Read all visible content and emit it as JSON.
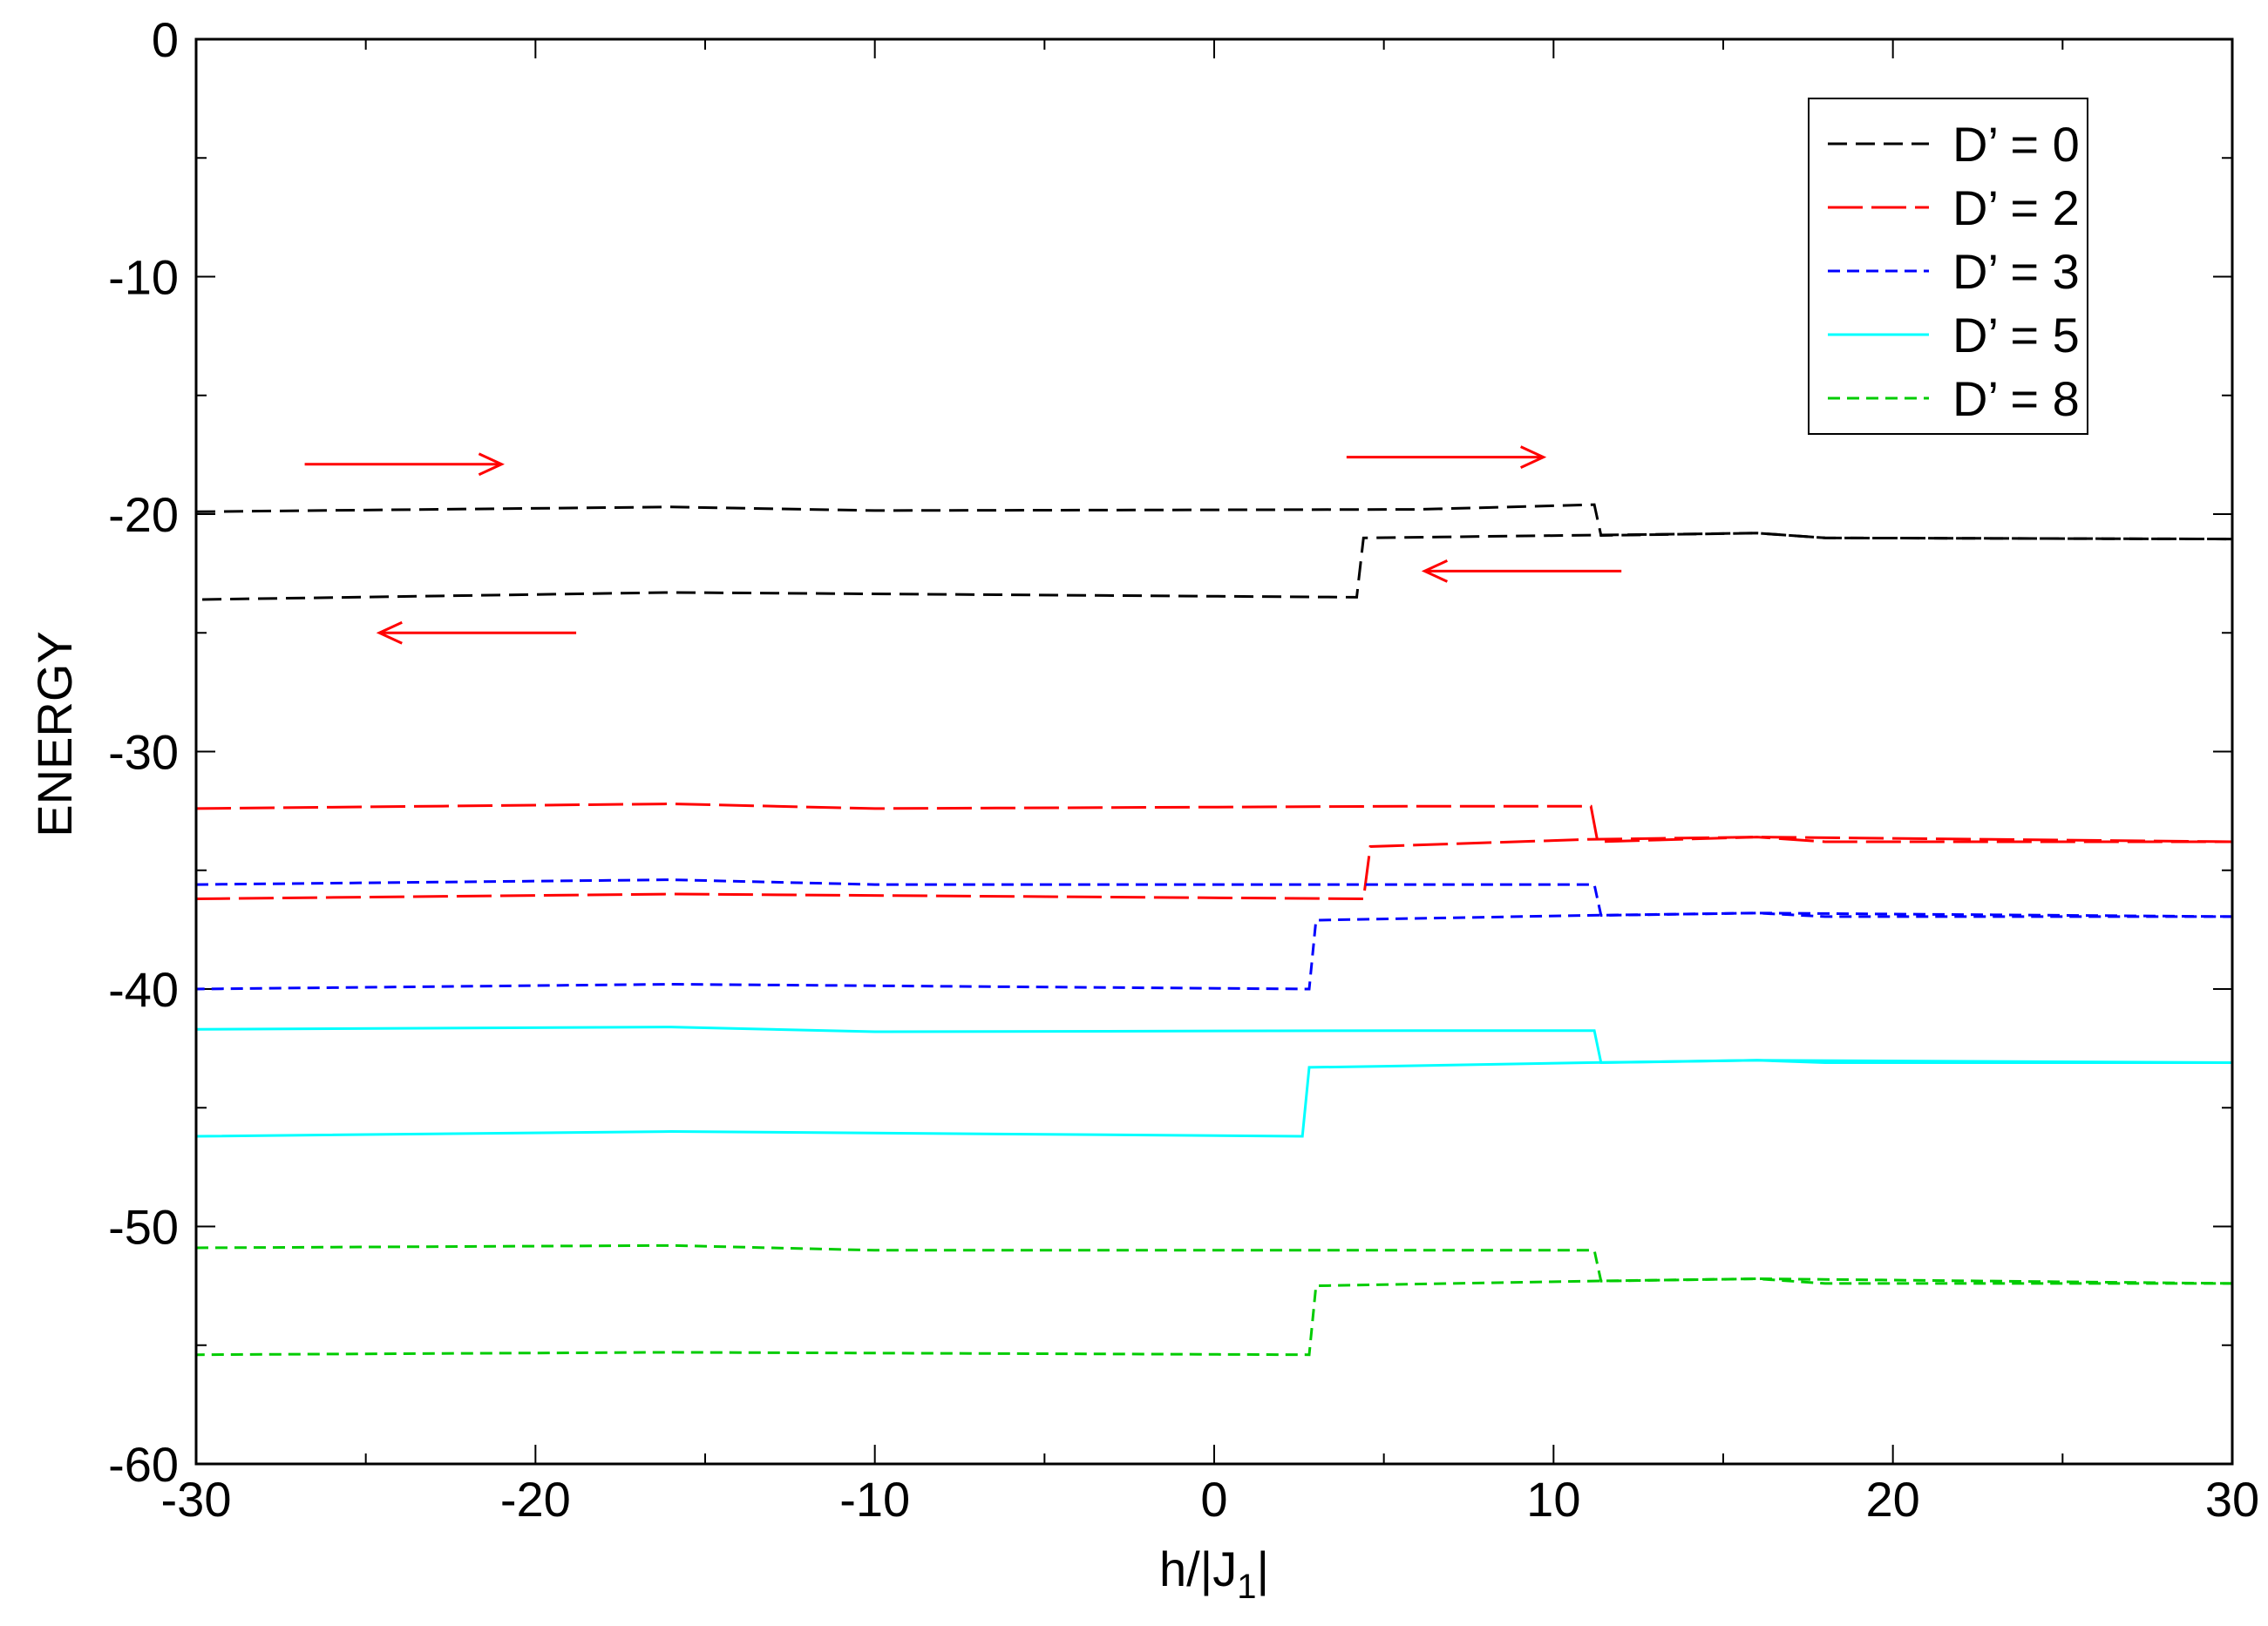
{
  "chart_data": {
    "type": "line",
    "xlabel": "h/|J",
    "xlabel_subscript": "1",
    "xlabel_suffix": "|",
    "ylabel": "ENERGY",
    "xlim": [
      -30,
      30
    ],
    "ylim": [
      -60,
      0
    ],
    "xticks": [
      -30,
      -20,
      -10,
      0,
      10,
      20,
      30
    ],
    "yticks": [
      0,
      -10,
      -20,
      -30,
      -40,
      -50,
      -60
    ],
    "x_minor_step": 5,
    "y_minor_step": 5,
    "grid": false,
    "legend_position": "top-right",
    "series": [
      {
        "name": "D’ = 0",
        "color": "#000000",
        "dash": "22,10",
        "forward": [
          [
            -30,
            -19.9
          ],
          [
            -16,
            -19.7
          ],
          [
            -10,
            -19.85
          ],
          [
            6,
            -19.8
          ],
          [
            11.2,
            -19.6
          ],
          [
            11.4,
            -20.9
          ],
          [
            16,
            -20.8
          ],
          [
            18,
            -21.0
          ],
          [
            30,
            -21.05
          ]
        ],
        "backward": [
          [
            30,
            -21.05
          ],
          [
            18,
            -21.0
          ],
          [
            16,
            -20.8
          ],
          [
            4.4,
            -21.0
          ],
          [
            4.2,
            -23.5
          ],
          [
            -16,
            -23.3
          ],
          [
            -30,
            -23.6
          ]
        ]
      },
      {
        "name": "D’ = 2",
        "color": "#ff0000",
        "dash": "40,10",
        "forward": [
          [
            -30,
            -32.4
          ],
          [
            -16,
            -32.2
          ],
          [
            -10,
            -32.4
          ],
          [
            6,
            -32.3
          ],
          [
            11.1,
            -32.3
          ],
          [
            11.3,
            -33.8
          ],
          [
            16,
            -33.6
          ],
          [
            18,
            -33.8
          ],
          [
            30,
            -33.8
          ]
        ],
        "backward": [
          [
            30,
            -33.8
          ],
          [
            16,
            -33.6
          ],
          [
            11,
            -33.7
          ],
          [
            4.6,
            -34.0
          ],
          [
            4.4,
            -36.2
          ],
          [
            -16,
            -36.0
          ],
          [
            -30,
            -36.2
          ]
        ]
      },
      {
        "name": "D’ = 3",
        "color": "#0000ff",
        "dash": "14,8",
        "forward": [
          [
            -30,
            -35.6
          ],
          [
            -16,
            -35.4
          ],
          [
            -10,
            -35.6
          ],
          [
            6,
            -35.6
          ],
          [
            11.2,
            -35.6
          ],
          [
            11.4,
            -36.9
          ],
          [
            16,
            -36.8
          ],
          [
            18,
            -36.95
          ],
          [
            30,
            -36.95
          ]
        ],
        "backward": [
          [
            30,
            -36.95
          ],
          [
            16,
            -36.8
          ],
          [
            11,
            -36.9
          ],
          [
            3,
            -37.1
          ],
          [
            2.8,
            -40.0
          ],
          [
            -16,
            -39.8
          ],
          [
            -30,
            -40.0
          ]
        ]
      },
      {
        "name": "D’ = 5",
        "color": "#00ffff",
        "dash": "",
        "forward": [
          [
            -30,
            -41.7
          ],
          [
            -16,
            -41.6
          ],
          [
            -10,
            -41.8
          ],
          [
            6,
            -41.75
          ],
          [
            11.2,
            -41.75
          ],
          [
            11.4,
            -43.1
          ],
          [
            16,
            -43.0
          ],
          [
            18,
            -43.1
          ],
          [
            30,
            -43.1
          ]
        ],
        "backward": [
          [
            30,
            -43.1
          ],
          [
            16,
            -43.0
          ],
          [
            11,
            -43.1
          ],
          [
            5,
            -43.25
          ],
          [
            2.8,
            -43.3
          ],
          [
            2.6,
            -46.2
          ],
          [
            -16,
            -46.0
          ],
          [
            -30,
            -46.2
          ]
        ]
      },
      {
        "name": "D’ = 8",
        "color": "#00cc00",
        "dash": "14,8",
        "forward": [
          [
            -30,
            -50.9
          ],
          [
            -16,
            -50.8
          ],
          [
            -10,
            -51.0
          ],
          [
            6,
            -51.0
          ],
          [
            11.2,
            -51.0
          ],
          [
            11.4,
            -52.3
          ],
          [
            16,
            -52.2
          ],
          [
            18,
            -52.4
          ],
          [
            30,
            -52.4
          ]
        ],
        "backward": [
          [
            30,
            -52.4
          ],
          [
            16,
            -52.2
          ],
          [
            11,
            -52.3
          ],
          [
            3,
            -52.5
          ],
          [
            2.8,
            -55.4
          ],
          [
            -16,
            -55.3
          ],
          [
            -30,
            -55.4
          ]
        ]
      }
    ],
    "annotations": [
      {
        "type": "arrow",
        "from": [
          -26.8,
          -17.9
        ],
        "to": [
          -21,
          -17.9
        ],
        "color": "#ff0000"
      },
      {
        "type": "arrow",
        "from": [
          3.9,
          -17.6
        ],
        "to": [
          9.7,
          -17.6
        ],
        "color": "#ff0000"
      },
      {
        "type": "arrow",
        "from": [
          12,
          -22.4
        ],
        "to": [
          6.2,
          -22.4
        ],
        "color": "#ff0000"
      },
      {
        "type": "arrow",
        "from": [
          -18.8,
          -25.0
        ],
        "to": [
          -24.6,
          -25.0
        ],
        "color": "#ff0000"
      }
    ]
  }
}
